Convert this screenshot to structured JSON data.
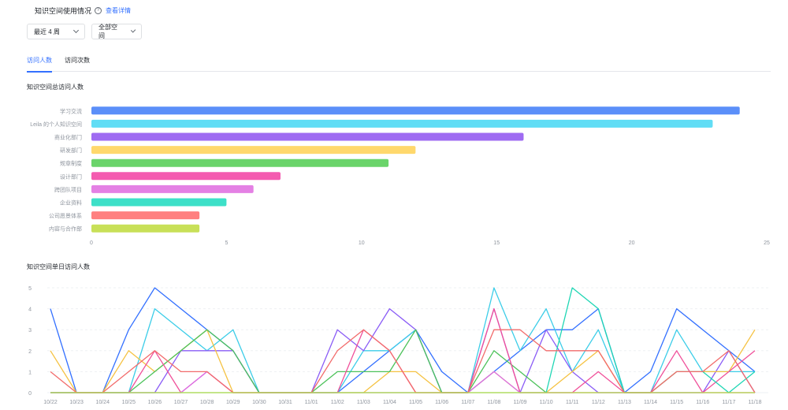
{
  "header": {
    "title": "知识空间使用情况",
    "help_icon": "question-circle-icon",
    "detail_link": "查看详情"
  },
  "filters": {
    "period": "最近 4 周",
    "space": "全部空间"
  },
  "tabs": [
    {
      "label": "访问人数",
      "active": true
    },
    {
      "label": "访问次数",
      "active": false
    }
  ],
  "chart_data": [
    {
      "type": "bar",
      "orientation": "horizontal",
      "title": "知识空间总访问人数",
      "categories": [
        "学习交流",
        "Leila 的个人知识空间",
        "商业化部门",
        "研发部门",
        "规章制度",
        "设计部门",
        "跨团队项目",
        "企业资料",
        "公司愿景体系",
        "内容与合作部"
      ],
      "values": [
        24,
        23,
        16,
        12,
        11,
        7,
        6,
        5,
        4,
        4
      ],
      "colors": [
        "#5b8ff9",
        "#61ddf5",
        "#9f6bf2",
        "#ffd86c",
        "#6ad46a",
        "#f45bb0",
        "#e480e4",
        "#3de0c8",
        "#ff8080",
        "#c8e058"
      ],
      "xlim": [
        0,
        25
      ],
      "xticks": [
        0,
        5,
        10,
        15,
        20,
        25
      ],
      "grid": false
    },
    {
      "type": "line",
      "title": "知识空间单日访问人数",
      "x": [
        "10/22",
        "10/23",
        "10/24",
        "10/25",
        "10/26",
        "10/27",
        "10/28",
        "10/29",
        "10/30",
        "10/31",
        "11/01",
        "11/02",
        "11/03",
        "11/04",
        "11/05",
        "11/06",
        "11/07",
        "11/08",
        "11/09",
        "11/10",
        "11/11",
        "11/12",
        "11/13",
        "11/14",
        "11/15",
        "11/16",
        "11/17",
        "11/18"
      ],
      "ylim": [
        0,
        5
      ],
      "yticks": [
        0,
        1,
        2,
        3,
        4,
        5
      ],
      "grid": true,
      "series": [
        {
          "color": "#3370ff",
          "values": [
            4,
            0,
            0,
            3,
            5,
            4,
            3,
            2,
            0,
            0,
            0,
            0,
            1,
            2,
            3,
            1,
            0,
            1,
            2,
            3,
            3,
            4,
            0,
            1,
            4,
            3,
            2,
            1
          ]
        },
        {
          "color": "#3ccde8",
          "values": [
            0,
            0,
            0,
            0,
            4,
            3,
            2,
            3,
            0,
            0,
            0,
            0,
            2,
            2,
            3,
            0,
            0,
            5,
            2,
            4,
            1,
            3,
            0,
            0,
            3,
            1,
            1,
            1
          ]
        },
        {
          "color": "#8a5cf6",
          "values": [
            0,
            0,
            0,
            0,
            0,
            2,
            2,
            2,
            0,
            0,
            0,
            3,
            2,
            4,
            3,
            0,
            0,
            4,
            0,
            3,
            1,
            0,
            0,
            0,
            0,
            0,
            2,
            0
          ]
        },
        {
          "color": "#f5c242",
          "values": [
            2,
            0,
            0,
            2,
            1,
            2,
            3,
            0,
            0,
            0,
            0,
            0,
            0,
            1,
            1,
            0,
            0,
            1,
            0,
            0,
            1,
            2,
            0,
            0,
            1,
            1,
            1,
            3
          ]
        },
        {
          "color": "#4cc25a",
          "values": [
            0,
            0,
            0,
            0,
            1,
            2,
            3,
            2,
            0,
            0,
            0,
            1,
            1,
            1,
            3,
            0,
            0,
            2,
            1,
            0,
            0,
            0,
            0,
            0,
            0,
            0,
            0,
            0
          ]
        },
        {
          "color": "#f0509a",
          "values": [
            0,
            0,
            0,
            0,
            2,
            0,
            1,
            0,
            0,
            0,
            0,
            0,
            3,
            2,
            0,
            0,
            0,
            4,
            0,
            0,
            0,
            1,
            0,
            0,
            2,
            0,
            1,
            2
          ]
        },
        {
          "color": "#d96ee6",
          "values": [
            0,
            0,
            0,
            0,
            0,
            0,
            1,
            0,
            0,
            0,
            0,
            0,
            0,
            0,
            0,
            0,
            0,
            1,
            0,
            0,
            0,
            0,
            0,
            0,
            0,
            0,
            0,
            0
          ]
        },
        {
          "color": "#1fd6b4",
          "values": [
            0,
            0,
            0,
            0,
            0,
            0,
            0,
            0,
            0,
            0,
            0,
            0,
            0,
            0,
            0,
            0,
            0,
            0,
            0,
            0,
            5,
            4,
            0,
            0,
            1,
            1,
            0,
            1
          ]
        },
        {
          "color": "#f26b6b",
          "values": [
            1,
            0,
            0,
            1,
            2,
            1,
            1,
            0,
            0,
            0,
            0,
            2,
            3,
            2,
            0,
            0,
            0,
            3,
            3,
            2,
            2,
            2,
            0,
            0,
            1,
            1,
            2,
            0
          ]
        },
        {
          "color": "#c2dc4e",
          "values": [
            0,
            0,
            0,
            0,
            0,
            0,
            0,
            0,
            0,
            0,
            0,
            0,
            0,
            0,
            0,
            0,
            0,
            0,
            0,
            0,
            0,
            0,
            0,
            0,
            0,
            0,
            0,
            0
          ]
        }
      ]
    }
  ]
}
